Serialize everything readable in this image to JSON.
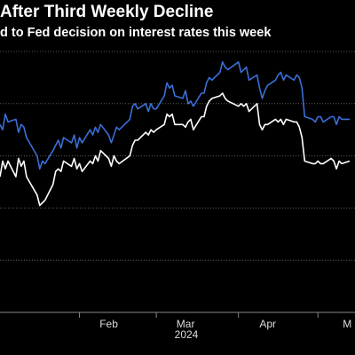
{
  "chart_data": {
    "type": "line",
    "title": "After Third Weekly Decline",
    "subtitle": "d to Fed decision on interest rates this week",
    "x_ticks": [
      {
        "label": "Feb",
        "date": "2024-02-01"
      },
      {
        "label": "Mar",
        "date": "2024-03-01"
      },
      {
        "label": "Apr",
        "date": "2024-04-01"
      },
      {
        "label": "M",
        "date": "2024-05-01"
      }
    ],
    "x_year_label": "2024",
    "xlim": [
      "2024-01-02",
      "2024-05-15"
    ],
    "ylim": [
      0,
      100
    ],
    "grid": true,
    "series": [
      {
        "color": "#3a6fd8",
        "points": [
          [
            "2024-01-02",
            72
          ],
          [
            "2024-01-03",
            70
          ],
          [
            "2024-01-04",
            76
          ],
          [
            "2024-01-05",
            73
          ],
          [
            "2024-01-08",
            74
          ],
          [
            "2024-01-09",
            69
          ],
          [
            "2024-01-10",
            72
          ],
          [
            "2024-01-11",
            71
          ],
          [
            "2024-01-12",
            67
          ],
          [
            "2024-01-16",
            60
          ],
          [
            "2024-01-17",
            55
          ],
          [
            "2024-01-18",
            58
          ],
          [
            "2024-01-19",
            57
          ],
          [
            "2024-01-22",
            62
          ],
          [
            "2024-01-23",
            64
          ],
          [
            "2024-01-24",
            66
          ],
          [
            "2024-01-25",
            63
          ],
          [
            "2024-01-26",
            67
          ],
          [
            "2024-01-29",
            65
          ],
          [
            "2024-01-30",
            68
          ],
          [
            "2024-01-31",
            63
          ],
          [
            "2024-02-01",
            67
          ],
          [
            "2024-02-02",
            65
          ],
          [
            "2024-02-05",
            70
          ],
          [
            "2024-02-06",
            68
          ],
          [
            "2024-02-07",
            71
          ],
          [
            "2024-02-08",
            69
          ],
          [
            "2024-02-09",
            72
          ],
          [
            "2024-02-12",
            68
          ],
          [
            "2024-02-13",
            65
          ],
          [
            "2024-02-14",
            68
          ],
          [
            "2024-02-15",
            71
          ],
          [
            "2024-02-16",
            70
          ],
          [
            "2024-02-20",
            74
          ],
          [
            "2024-02-21",
            79
          ],
          [
            "2024-02-22",
            80
          ],
          [
            "2024-02-23",
            78
          ],
          [
            "2024-02-26",
            80
          ],
          [
            "2024-02-27",
            77
          ],
          [
            "2024-02-28",
            80
          ],
          [
            "2024-02-29",
            78
          ],
          [
            "2024-03-01",
            78
          ],
          [
            "2024-03-04",
            83
          ],
          [
            "2024-03-05",
            88
          ],
          [
            "2024-03-06",
            86
          ],
          [
            "2024-03-07",
            87
          ],
          [
            "2024-03-08",
            83
          ],
          [
            "2024-03-11",
            82
          ],
          [
            "2024-03-12",
            85
          ],
          [
            "2024-03-13",
            80
          ],
          [
            "2024-03-14",
            81
          ],
          [
            "2024-03-15",
            79
          ],
          [
            "2024-03-18",
            84
          ],
          [
            "2024-03-19",
            84
          ],
          [
            "2024-03-20",
            88
          ],
          [
            "2024-03-21",
            90
          ],
          [
            "2024-03-22",
            89
          ],
          [
            "2024-03-25",
            92
          ],
          [
            "2024-03-26",
            96
          ],
          [
            "2024-03-27",
            94
          ],
          [
            "2024-03-28",
            93
          ],
          [
            "2024-04-01",
            96
          ],
          [
            "2024-04-02",
            92
          ],
          [
            "2024-04-03",
            93
          ],
          [
            "2024-04-04",
            94
          ],
          [
            "2024-04-05",
            89
          ],
          [
            "2024-04-08",
            91
          ],
          [
            "2024-04-09",
            86
          ],
          [
            "2024-04-10",
            82
          ],
          [
            "2024-04-11",
            85
          ],
          [
            "2024-04-12",
            87
          ],
          [
            "2024-04-15",
            89
          ],
          [
            "2024-04-16",
            91
          ],
          [
            "2024-04-17",
            92
          ],
          [
            "2024-04-18",
            89
          ],
          [
            "2024-04-19",
            91
          ],
          [
            "2024-04-22",
            89
          ],
          [
            "2024-04-23",
            91
          ],
          [
            "2024-04-24",
            90
          ],
          [
            "2024-04-25",
            86
          ],
          [
            "2024-04-26",
            75
          ],
          [
            "2024-04-29",
            74
          ],
          [
            "2024-04-30",
            73
          ],
          [
            "2024-05-01",
            75
          ],
          [
            "2024-05-02",
            75
          ],
          [
            "2024-05-03",
            73
          ],
          [
            "2024-05-06",
            75
          ],
          [
            "2024-05-07",
            75
          ],
          [
            "2024-05-08",
            72
          ],
          [
            "2024-05-09",
            75
          ],
          [
            "2024-05-10",
            74
          ],
          [
            "2024-05-13",
            74
          ]
        ]
      },
      {
        "color": "#ffffff",
        "points": [
          [
            "2024-01-02",
            52
          ],
          [
            "2024-01-03",
            58
          ],
          [
            "2024-01-04",
            55
          ],
          [
            "2024-01-05",
            58
          ],
          [
            "2024-01-08",
            52
          ],
          [
            "2024-01-09",
            59
          ],
          [
            "2024-01-10",
            56
          ],
          [
            "2024-01-11",
            58
          ],
          [
            "2024-01-12",
            52
          ],
          [
            "2024-01-16",
            45
          ],
          [
            "2024-01-17",
            41
          ],
          [
            "2024-01-18",
            42
          ],
          [
            "2024-01-19",
            43
          ],
          [
            "2024-01-22",
            49
          ],
          [
            "2024-01-23",
            54
          ],
          [
            "2024-01-24",
            55
          ],
          [
            "2024-01-25",
            54
          ],
          [
            "2024-01-26",
            58
          ],
          [
            "2024-01-29",
            56
          ],
          [
            "2024-01-30",
            59
          ],
          [
            "2024-01-31",
            55
          ],
          [
            "2024-02-01",
            57
          ],
          [
            "2024-02-02",
            54
          ],
          [
            "2024-02-05",
            58
          ],
          [
            "2024-02-06",
            57
          ],
          [
            "2024-02-07",
            60
          ],
          [
            "2024-02-08",
            58
          ],
          [
            "2024-02-09",
            62
          ],
          [
            "2024-02-12",
            59
          ],
          [
            "2024-02-13",
            56
          ],
          [
            "2024-02-14",
            60
          ],
          [
            "2024-02-15",
            58
          ],
          [
            "2024-02-16",
            57
          ],
          [
            "2024-02-20",
            60
          ],
          [
            "2024-02-21",
            64
          ],
          [
            "2024-02-22",
            66
          ],
          [
            "2024-02-23",
            66
          ],
          [
            "2024-02-26",
            69
          ],
          [
            "2024-02-27",
            68
          ],
          [
            "2024-02-28",
            70
          ],
          [
            "2024-02-29",
            69
          ],
          [
            "2024-03-01",
            70
          ],
          [
            "2024-03-04",
            72
          ],
          [
            "2024-03-05",
            76
          ],
          [
            "2024-03-06",
            75
          ],
          [
            "2024-03-07",
            76
          ],
          [
            "2024-03-08",
            72
          ],
          [
            "2024-03-11",
            72
          ],
          [
            "2024-03-12",
            71
          ],
          [
            "2024-03-13",
            73
          ],
          [
            "2024-03-14",
            74
          ],
          [
            "2024-03-15",
            70
          ],
          [
            "2024-03-18",
            75
          ],
          [
            "2024-03-19",
            75
          ],
          [
            "2024-03-20",
            79
          ],
          [
            "2024-03-21",
            81
          ],
          [
            "2024-03-22",
            82
          ],
          [
            "2024-03-25",
            83
          ],
          [
            "2024-03-26",
            84
          ],
          [
            "2024-03-27",
            82
          ],
          [
            "2024-03-28",
            81
          ],
          [
            "2024-04-01",
            79
          ],
          [
            "2024-04-02",
            80
          ],
          [
            "2024-04-03",
            79
          ],
          [
            "2024-04-04",
            80
          ],
          [
            "2024-04-05",
            77
          ],
          [
            "2024-04-08",
            80
          ],
          [
            "2024-04-09",
            72
          ],
          [
            "2024-04-10",
            70
          ],
          [
            "2024-04-11",
            72
          ],
          [
            "2024-04-12",
            72
          ],
          [
            "2024-04-15",
            74
          ],
          [
            "2024-04-16",
            73
          ],
          [
            "2024-04-17",
            74
          ],
          [
            "2024-04-18",
            72
          ],
          [
            "2024-04-19",
            74
          ],
          [
            "2024-04-22",
            73
          ],
          [
            "2024-04-23",
            73
          ],
          [
            "2024-04-24",
            71
          ],
          [
            "2024-04-25",
            67
          ],
          [
            "2024-04-26",
            58
          ],
          [
            "2024-04-29",
            57
          ],
          [
            "2024-04-30",
            57
          ],
          [
            "2024-05-01",
            58
          ],
          [
            "2024-05-02",
            57
          ],
          [
            "2024-05-03",
            57
          ],
          [
            "2024-05-06",
            59
          ],
          [
            "2024-05-07",
            58
          ],
          [
            "2024-05-08",
            55
          ],
          [
            "2024-05-09",
            58
          ],
          [
            "2024-05-10",
            57
          ],
          [
            "2024-05-13",
            58
          ]
        ]
      }
    ]
  }
}
